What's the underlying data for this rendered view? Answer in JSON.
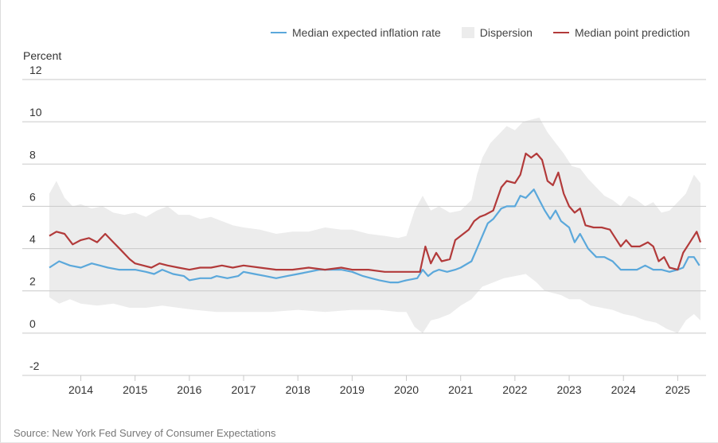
{
  "chart_data": {
    "type": "line",
    "ylabel": "Percent",
    "source": "Source: New York Fed Survey of Consumer Expectations",
    "ylim": [
      -2,
      12
    ],
    "yticks": [
      "-2",
      "0",
      "2",
      "4",
      "6",
      "8",
      "10",
      "12"
    ],
    "xlim": [
      2013.42,
      2025.42
    ],
    "xticks": [
      "2014",
      "2015",
      "2016",
      "2017",
      "2018",
      "2019",
      "2020",
      "2021",
      "2022",
      "2023",
      "2024",
      "2025"
    ],
    "grid": true,
    "legend_position": "top",
    "colors": {
      "median": "#5ba8db",
      "dispersion": "#ececec",
      "point": "#b23a3a"
    },
    "series": [
      {
        "name": "Median expected inflation rate",
        "points": [
          [
            2013.42,
            3.1
          ],
          [
            2013.6,
            3.4
          ],
          [
            2013.8,
            3.2
          ],
          [
            2014.0,
            3.1
          ],
          [
            2014.2,
            3.3
          ],
          [
            2014.35,
            3.2
          ],
          [
            2014.5,
            3.1
          ],
          [
            2014.7,
            3.0
          ],
          [
            2015.0,
            3.0
          ],
          [
            2015.2,
            2.9
          ],
          [
            2015.35,
            2.8
          ],
          [
            2015.5,
            3.0
          ],
          [
            2015.7,
            2.8
          ],
          [
            2015.9,
            2.7
          ],
          [
            2016.0,
            2.5
          ],
          [
            2016.2,
            2.6
          ],
          [
            2016.4,
            2.6
          ],
          [
            2016.5,
            2.7
          ],
          [
            2016.7,
            2.6
          ],
          [
            2016.9,
            2.7
          ],
          [
            2017.0,
            2.9
          ],
          [
            2017.2,
            2.8
          ],
          [
            2017.4,
            2.7
          ],
          [
            2017.6,
            2.6
          ],
          [
            2017.8,
            2.7
          ],
          [
            2018.0,
            2.8
          ],
          [
            2018.2,
            2.9
          ],
          [
            2018.4,
            3.0
          ],
          [
            2018.6,
            3.0
          ],
          [
            2018.8,
            3.0
          ],
          [
            2019.0,
            2.9
          ],
          [
            2019.2,
            2.7
          ],
          [
            2019.35,
            2.6
          ],
          [
            2019.5,
            2.5
          ],
          [
            2019.7,
            2.4
          ],
          [
            2019.85,
            2.4
          ],
          [
            2020.0,
            2.5
          ],
          [
            2020.2,
            2.6
          ],
          [
            2020.3,
            3.0
          ],
          [
            2020.4,
            2.7
          ],
          [
            2020.5,
            2.9
          ],
          [
            2020.6,
            3.0
          ],
          [
            2020.75,
            2.9
          ],
          [
            2020.9,
            3.0
          ],
          [
            2021.0,
            3.1
          ],
          [
            2021.2,
            3.4
          ],
          [
            2021.3,
            4.0
          ],
          [
            2021.4,
            4.6
          ],
          [
            2021.5,
            5.2
          ],
          [
            2021.6,
            5.4
          ],
          [
            2021.75,
            5.9
          ],
          [
            2021.85,
            6.0
          ],
          [
            2022.0,
            6.0
          ],
          [
            2022.1,
            6.5
          ],
          [
            2022.2,
            6.4
          ],
          [
            2022.35,
            6.8
          ],
          [
            2022.45,
            6.3
          ],
          [
            2022.55,
            5.8
          ],
          [
            2022.65,
            5.4
          ],
          [
            2022.75,
            5.8
          ],
          [
            2022.85,
            5.3
          ],
          [
            2023.0,
            5.0
          ],
          [
            2023.1,
            4.3
          ],
          [
            2023.2,
            4.7
          ],
          [
            2023.35,
            4.0
          ],
          [
            2023.5,
            3.6
          ],
          [
            2023.65,
            3.6
          ],
          [
            2023.8,
            3.4
          ],
          [
            2023.95,
            3.0
          ],
          [
            2024.1,
            3.0
          ],
          [
            2024.25,
            3.0
          ],
          [
            2024.4,
            3.2
          ],
          [
            2024.55,
            3.0
          ],
          [
            2024.7,
            3.0
          ],
          [
            2024.85,
            2.9
          ],
          [
            2025.0,
            3.0
          ],
          [
            2025.1,
            3.1
          ],
          [
            2025.2,
            3.6
          ],
          [
            2025.3,
            3.6
          ],
          [
            2025.4,
            3.2
          ]
        ]
      },
      {
        "name": "Median point prediction",
        "points": [
          [
            2013.42,
            4.6
          ],
          [
            2013.55,
            4.8
          ],
          [
            2013.7,
            4.7
          ],
          [
            2013.85,
            4.2
          ],
          [
            2014.0,
            4.4
          ],
          [
            2014.15,
            4.5
          ],
          [
            2014.3,
            4.3
          ],
          [
            2014.45,
            4.7
          ],
          [
            2014.6,
            4.3
          ],
          [
            2014.75,
            3.9
          ],
          [
            2014.9,
            3.5
          ],
          [
            2015.0,
            3.3
          ],
          [
            2015.15,
            3.2
          ],
          [
            2015.3,
            3.1
          ],
          [
            2015.45,
            3.3
          ],
          [
            2015.6,
            3.2
          ],
          [
            2015.8,
            3.1
          ],
          [
            2016.0,
            3.0
          ],
          [
            2016.2,
            3.1
          ],
          [
            2016.4,
            3.1
          ],
          [
            2016.6,
            3.2
          ],
          [
            2016.8,
            3.1
          ],
          [
            2017.0,
            3.2
          ],
          [
            2017.3,
            3.1
          ],
          [
            2017.6,
            3.0
          ],
          [
            2017.9,
            3.0
          ],
          [
            2018.2,
            3.1
          ],
          [
            2018.5,
            3.0
          ],
          [
            2018.8,
            3.1
          ],
          [
            2019.0,
            3.0
          ],
          [
            2019.3,
            3.0
          ],
          [
            2019.6,
            2.9
          ],
          [
            2019.85,
            2.9
          ],
          [
            2020.1,
            2.9
          ],
          [
            2020.25,
            2.9
          ],
          [
            2020.35,
            4.1
          ],
          [
            2020.45,
            3.3
          ],
          [
            2020.55,
            3.8
          ],
          [
            2020.65,
            3.4
          ],
          [
            2020.8,
            3.5
          ],
          [
            2020.9,
            4.4
          ],
          [
            2021.0,
            4.6
          ],
          [
            2021.15,
            4.9
          ],
          [
            2021.25,
            5.3
          ],
          [
            2021.35,
            5.5
          ],
          [
            2021.45,
            5.6
          ],
          [
            2021.6,
            5.8
          ],
          [
            2021.75,
            6.9
          ],
          [
            2021.85,
            7.2
          ],
          [
            2022.0,
            7.1
          ],
          [
            2022.1,
            7.5
          ],
          [
            2022.2,
            8.5
          ],
          [
            2022.3,
            8.3
          ],
          [
            2022.4,
            8.5
          ],
          [
            2022.5,
            8.2
          ],
          [
            2022.6,
            7.2
          ],
          [
            2022.7,
            7.0
          ],
          [
            2022.8,
            7.6
          ],
          [
            2022.9,
            6.6
          ],
          [
            2023.0,
            6.0
          ],
          [
            2023.1,
            5.7
          ],
          [
            2023.2,
            5.9
          ],
          [
            2023.3,
            5.1
          ],
          [
            2023.45,
            5.0
          ],
          [
            2023.6,
            5.0
          ],
          [
            2023.75,
            4.9
          ],
          [
            2023.85,
            4.5
          ],
          [
            2023.95,
            4.1
          ],
          [
            2024.05,
            4.4
          ],
          [
            2024.15,
            4.1
          ],
          [
            2024.3,
            4.1
          ],
          [
            2024.45,
            4.3
          ],
          [
            2024.55,
            4.1
          ],
          [
            2024.65,
            3.4
          ],
          [
            2024.75,
            3.6
          ],
          [
            2024.85,
            3.1
          ],
          [
            2025.0,
            3.0
          ],
          [
            2025.1,
            3.8
          ],
          [
            2025.2,
            4.2
          ],
          [
            2025.35,
            4.8
          ],
          [
            2025.42,
            4.3
          ]
        ]
      },
      {
        "name": "Dispersion",
        "upper": [
          [
            2013.42,
            6.6
          ],
          [
            2013.55,
            7.2
          ],
          [
            2013.7,
            6.4
          ],
          [
            2013.85,
            6.0
          ],
          [
            2014.0,
            6.1
          ],
          [
            2014.2,
            5.9
          ],
          [
            2014.4,
            6.0
          ],
          [
            2014.6,
            5.7
          ],
          [
            2014.8,
            5.6
          ],
          [
            2015.0,
            5.7
          ],
          [
            2015.2,
            5.5
          ],
          [
            2015.4,
            5.8
          ],
          [
            2015.6,
            6.0
          ],
          [
            2015.8,
            5.6
          ],
          [
            2016.0,
            5.6
          ],
          [
            2016.2,
            5.4
          ],
          [
            2016.4,
            5.5
          ],
          [
            2016.6,
            5.3
          ],
          [
            2016.8,
            5.1
          ],
          [
            2017.0,
            5.0
          ],
          [
            2017.3,
            4.9
          ],
          [
            2017.6,
            4.7
          ],
          [
            2017.9,
            4.8
          ],
          [
            2018.2,
            4.8
          ],
          [
            2018.5,
            5.0
          ],
          [
            2018.8,
            4.9
          ],
          [
            2019.0,
            4.9
          ],
          [
            2019.3,
            4.7
          ],
          [
            2019.6,
            4.6
          ],
          [
            2019.85,
            4.5
          ],
          [
            2020.0,
            4.6
          ],
          [
            2020.15,
            5.8
          ],
          [
            2020.3,
            6.5
          ],
          [
            2020.45,
            5.8
          ],
          [
            2020.6,
            6.0
          ],
          [
            2020.8,
            5.7
          ],
          [
            2021.0,
            5.8
          ],
          [
            2021.2,
            6.3
          ],
          [
            2021.3,
            7.5
          ],
          [
            2021.4,
            8.3
          ],
          [
            2021.55,
            9.0
          ],
          [
            2021.7,
            9.4
          ],
          [
            2021.85,
            9.8
          ],
          [
            2022.0,
            9.6
          ],
          [
            2022.15,
            10.0
          ],
          [
            2022.3,
            10.1
          ],
          [
            2022.45,
            10.2
          ],
          [
            2022.6,
            9.5
          ],
          [
            2022.75,
            9.0
          ],
          [
            2022.9,
            8.5
          ],
          [
            2023.05,
            7.9
          ],
          [
            2023.2,
            7.8
          ],
          [
            2023.35,
            7.3
          ],
          [
            2023.5,
            6.9
          ],
          [
            2023.65,
            6.5
          ],
          [
            2023.8,
            6.3
          ],
          [
            2023.95,
            6.0
          ],
          [
            2024.1,
            6.5
          ],
          [
            2024.25,
            6.3
          ],
          [
            2024.4,
            6.0
          ],
          [
            2024.55,
            6.2
          ],
          [
            2024.7,
            5.7
          ],
          [
            2024.85,
            5.8
          ],
          [
            2025.0,
            6.2
          ],
          [
            2025.15,
            6.6
          ],
          [
            2025.3,
            7.5
          ],
          [
            2025.42,
            7.1
          ]
        ],
        "lower": [
          [
            2013.42,
            1.7
          ],
          [
            2013.6,
            1.4
          ],
          [
            2013.8,
            1.6
          ],
          [
            2014.0,
            1.4
          ],
          [
            2014.3,
            1.3
          ],
          [
            2014.6,
            1.4
          ],
          [
            2014.9,
            1.2
          ],
          [
            2015.2,
            1.2
          ],
          [
            2015.5,
            1.3
          ],
          [
            2015.8,
            1.2
          ],
          [
            2016.1,
            1.1
          ],
          [
            2016.5,
            1.0
          ],
          [
            2017.0,
            1.0
          ],
          [
            2017.5,
            1.0
          ],
          [
            2018.0,
            1.1
          ],
          [
            2018.5,
            1.0
          ],
          [
            2019.0,
            1.1
          ],
          [
            2019.5,
            1.1
          ],
          [
            2019.85,
            1.0
          ],
          [
            2020.0,
            1.0
          ],
          [
            2020.15,
            0.3
          ],
          [
            2020.3,
            0.0
          ],
          [
            2020.45,
            0.6
          ],
          [
            2020.6,
            0.7
          ],
          [
            2020.8,
            0.9
          ],
          [
            2021.0,
            1.3
          ],
          [
            2021.2,
            1.6
          ],
          [
            2021.4,
            2.2
          ],
          [
            2021.6,
            2.4
          ],
          [
            2021.8,
            2.6
          ],
          [
            2022.0,
            2.7
          ],
          [
            2022.2,
            2.8
          ],
          [
            2022.4,
            2.4
          ],
          [
            2022.55,
            2.0
          ],
          [
            2022.7,
            1.9
          ],
          [
            2022.85,
            1.8
          ],
          [
            2023.0,
            1.6
          ],
          [
            2023.2,
            1.6
          ],
          [
            2023.4,
            1.3
          ],
          [
            2023.6,
            1.2
          ],
          [
            2023.8,
            1.1
          ],
          [
            2024.0,
            0.9
          ],
          [
            2024.2,
            0.8
          ],
          [
            2024.4,
            0.6
          ],
          [
            2024.6,
            0.5
          ],
          [
            2024.8,
            0.2
          ],
          [
            2025.0,
            0.0
          ],
          [
            2025.15,
            0.6
          ],
          [
            2025.3,
            0.9
          ],
          [
            2025.42,
            0.6
          ]
        ]
      }
    ]
  }
}
